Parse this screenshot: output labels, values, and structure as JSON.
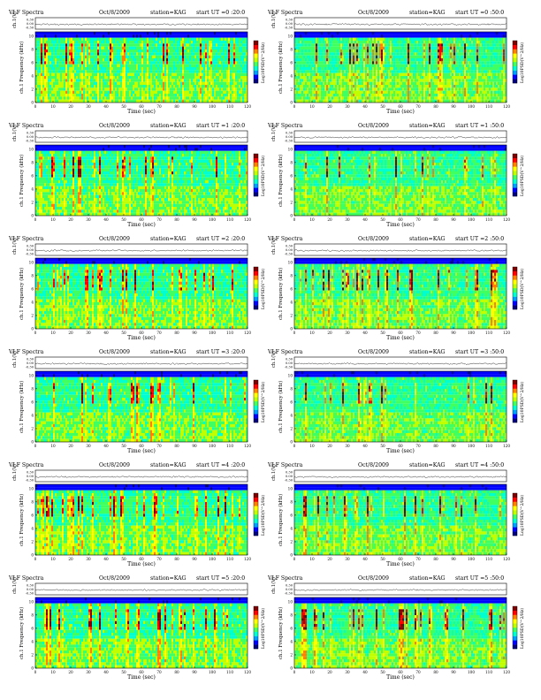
{
  "page_title": "VLF Spectra",
  "chart_data": {
    "type": "heatmap",
    "station": "station=KAG",
    "x_axis": {
      "label": "Time (sec)",
      "range": [
        0,
        120
      ],
      "ticks": [
        "0",
        "10",
        "20",
        "30",
        "40",
        "50",
        "60",
        "70",
        "80",
        "90",
        "100",
        "110",
        "120"
      ]
    },
    "waveform_axis": {
      "label": "ch.1(V)",
      "ticks": [
        "0.30",
        "0.00",
        "-0.30"
      ],
      "range": [
        -0.3,
        0.3
      ]
    },
    "spectrogram_axis": {
      "label": "ch.1 Frequency (kHz)",
      "ticks": [
        "0",
        "2",
        "4",
        "6",
        "8",
        "10"
      ],
      "range": [
        0,
        10
      ]
    },
    "colorbar": {
      "label": "Log10PSD(V^2/Hz)",
      "colors": [
        "#000080",
        "#0000ff",
        "#00a0ff",
        "#00ffd0",
        "#40ff60",
        "#c0ff00",
        "#ffff00",
        "#ff8000",
        "#ff0000",
        "#800000"
      ]
    },
    "panels": [
      {
        "title": "VLF Spectra",
        "date": "Oct/8/2009",
        "station": "station=KAG",
        "start": "start  UT =0 :20:0",
        "seed": 11
      },
      {
        "title": "VLF Spectra",
        "date": "Oct/8/2009",
        "station": "station=KAG",
        "start": "start  UT =0 :50:0",
        "seed": 23
      },
      {
        "title": "VLF Spectra",
        "date": "Oct/8/2009",
        "station": "station=KAG",
        "start": "start  UT =1 :20:0",
        "seed": 37
      },
      {
        "title": "VLF Spectra",
        "date": "Oct/8/2009",
        "station": "station=KAG",
        "start": "start  UT =1 :50:0",
        "seed": 41
      },
      {
        "title": "VLF Spectra",
        "date": "Oct/8/2009",
        "station": "station=KAG",
        "start": "start  UT =2 :20:0",
        "seed": 53
      },
      {
        "title": "VLF Spectra",
        "date": "Oct/8/2009",
        "station": "station=KAG",
        "start": "start  UT =2 :50:0",
        "seed": 67
      },
      {
        "title": "VLF Spectra",
        "date": "Oct/8/2009",
        "station": "station=KAG",
        "start": "start  UT =3 :20:0",
        "seed": 71
      },
      {
        "title": "VLF Spectra",
        "date": "Oct/8/2009",
        "station": "station=KAG",
        "start": "start  UT =3 :50:0",
        "seed": 83
      },
      {
        "title": "VLF Spectra",
        "date": "Oct/8/2009",
        "station": "station=KAG",
        "start": "start  UT =4 :20:0",
        "seed": 97
      },
      {
        "title": "VLF Spectra",
        "date": "Oct/8/2009",
        "station": "station=KAG",
        "start": "start  UT =4 :50:0",
        "seed": 101
      },
      {
        "title": "VLF Spectra",
        "date": "Oct/8/2009",
        "station": "station=KAG",
        "start": "start  UT =5 :20:0",
        "seed": 113
      },
      {
        "title": "VLF Spectra",
        "date": "Oct/8/2009",
        "station": "station=KAG",
        "start": "start  UT =5 :50:0",
        "seed": 127
      }
    ]
  }
}
